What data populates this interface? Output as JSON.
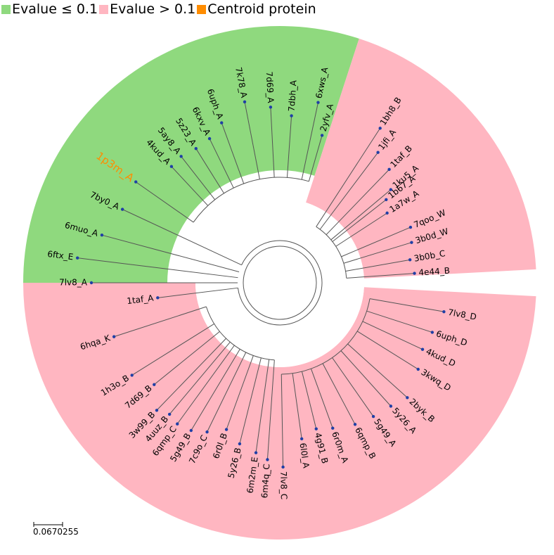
{
  "legend": [
    {
      "label": "Evalue ≤ 0.1",
      "color": "#8fd97e"
    },
    {
      "label": "Evalue > 0.1",
      "color": "#ffb6c1"
    },
    {
      "label": "Centroid protein",
      "color": "#ff8c00"
    }
  ],
  "centroid_color": "#ff8c00",
  "scale_bar": {
    "label": "0.0670255"
  },
  "leaves": [
    {
      "name": "1p3m_A",
      "centroid": true
    },
    {
      "name": "4kud_A"
    },
    {
      "name": "5ay8_A"
    },
    {
      "name": "5z23_A"
    },
    {
      "name": "6kxv_A"
    },
    {
      "name": "6uph_A"
    },
    {
      "name": "7k78_A"
    },
    {
      "name": "7d69_A"
    },
    {
      "name": "7dbh_A"
    },
    {
      "name": "6xws_A"
    },
    {
      "name": "2yfv_A"
    },
    {
      "name": "1bh8_B"
    },
    {
      "name": "1jfi_A"
    },
    {
      "name": "1taf_B"
    },
    {
      "name": "1ku5_A"
    },
    {
      "name": "1b67_A"
    },
    {
      "name": "1a7w_A"
    },
    {
      "name": "7qoo_W"
    },
    {
      "name": "3b0d_W"
    },
    {
      "name": "3b0b_C"
    },
    {
      "name": "4e44_B"
    },
    {
      "name": "7lv8_D"
    },
    {
      "name": "6uph_D"
    },
    {
      "name": "4kud_D"
    },
    {
      "name": "3kwq_D"
    },
    {
      "name": "2byk_B"
    },
    {
      "name": "5y26_A"
    },
    {
      "name": "5g49_A"
    },
    {
      "name": "6qmp_B"
    },
    {
      "name": "6r0m_A"
    },
    {
      "name": "4g91_B"
    },
    {
      "name": "6l0l_A"
    },
    {
      "name": "7lv8_C"
    },
    {
      "name": "6m4q_C"
    },
    {
      "name": "6m2m_E"
    },
    {
      "name": "5y26_B"
    },
    {
      "name": "6r0l_B"
    },
    {
      "name": "7c9o_C"
    },
    {
      "name": "5g49_B"
    },
    {
      "name": "6qmp_C"
    },
    {
      "name": "4uuz_B"
    },
    {
      "name": "3w99_B"
    },
    {
      "name": "7d69_B"
    },
    {
      "name": "1h3o_B"
    },
    {
      "name": "6hqa_K"
    },
    {
      "name": "1taf_A"
    },
    {
      "name": "7lv8_A"
    },
    {
      "name": "6ftx_E"
    },
    {
      "name": "6muo_A"
    },
    {
      "name": "7by0_A"
    }
  ]
}
